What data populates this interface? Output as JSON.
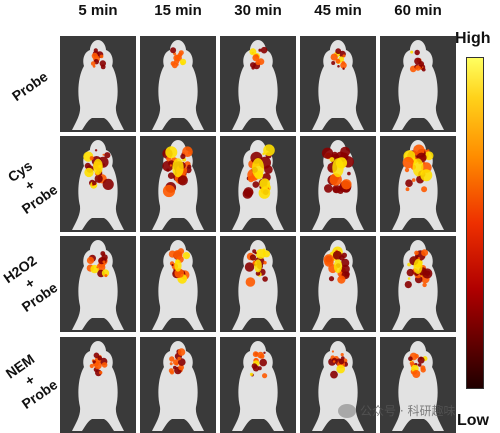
{
  "columns": [
    "5 min",
    "15 min",
    "30 min",
    "45 min",
    "60 min"
  ],
  "rows": [
    {
      "line1": "Probe",
      "line2": "",
      "line3": ""
    },
    {
      "line1": "Cys",
      "line2": "+",
      "line3": "Probe"
    },
    {
      "line1": "H2O2",
      "line2": "+",
      "line3": "Probe"
    },
    {
      "line1": "NEM",
      "line2": "+",
      "line3": "Probe"
    }
  ],
  "scale": {
    "high": "High",
    "low": "Low"
  },
  "watermark": {
    "text": "公众号 · 科研趣味"
  },
  "colors": {
    "panel_bg": "#3a3a3a",
    "mouse": "#e2e2e2",
    "hot": "#ffe000",
    "mid": "#ff5a00",
    "cold": "#8a0000"
  },
  "signal_levels": [
    [
      0.25,
      0.3,
      0.3,
      0.3,
      0.3
    ],
    [
      0.8,
      0.95,
      1.0,
      0.95,
      0.9
    ],
    [
      0.5,
      0.6,
      0.65,
      0.7,
      0.75
    ],
    [
      0.35,
      0.4,
      0.45,
      0.45,
      0.45
    ]
  ]
}
